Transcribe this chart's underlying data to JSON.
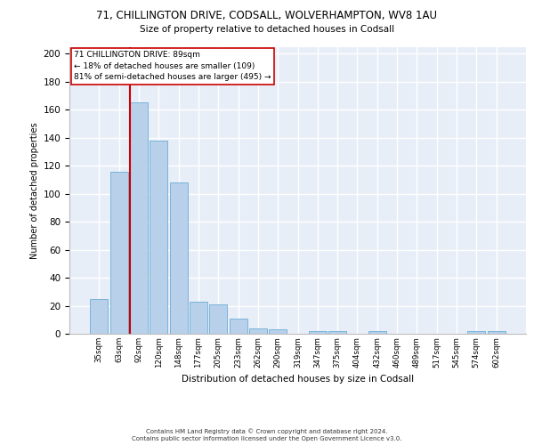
{
  "title_line1": "71, CHILLINGTON DRIVE, CODSALL, WOLVERHAMPTON, WV8 1AU",
  "title_line2": "Size of property relative to detached houses in Codsall",
  "xlabel": "Distribution of detached houses by size in Codsall",
  "ylabel": "Number of detached properties",
  "bar_labels": [
    "35sqm",
    "63sqm",
    "92sqm",
    "120sqm",
    "148sqm",
    "177sqm",
    "205sqm",
    "233sqm",
    "262sqm",
    "290sqm",
    "319sqm",
    "347sqm",
    "375sqm",
    "404sqm",
    "432sqm",
    "460sqm",
    "489sqm",
    "517sqm",
    "545sqm",
    "574sqm",
    "602sqm"
  ],
  "bar_values": [
    25,
    116,
    165,
    138,
    108,
    23,
    21,
    11,
    4,
    3,
    0,
    2,
    2,
    0,
    2,
    0,
    0,
    0,
    0,
    2,
    2
  ],
  "bar_color": "#b8d0ea",
  "bar_edge_color": "#6aaed6",
  "vline_color": "#cc0000",
  "annotation_text_line1": "71 CHILLINGTON DRIVE: 89sqm",
  "annotation_text_line2": "← 18% of detached houses are smaller (109)",
  "annotation_text_line3": "81% of semi-detached houses are larger (495) →",
  "ylim_max": 205,
  "yticks": [
    0,
    20,
    40,
    60,
    80,
    100,
    120,
    140,
    160,
    180,
    200
  ],
  "background_color": "#e8eef8",
  "grid_color": "#ffffff",
  "footer_line1": "Contains HM Land Registry data © Crown copyright and database right 2024.",
  "footer_line2": "Contains public sector information licensed under the Open Government Licence v3.0."
}
